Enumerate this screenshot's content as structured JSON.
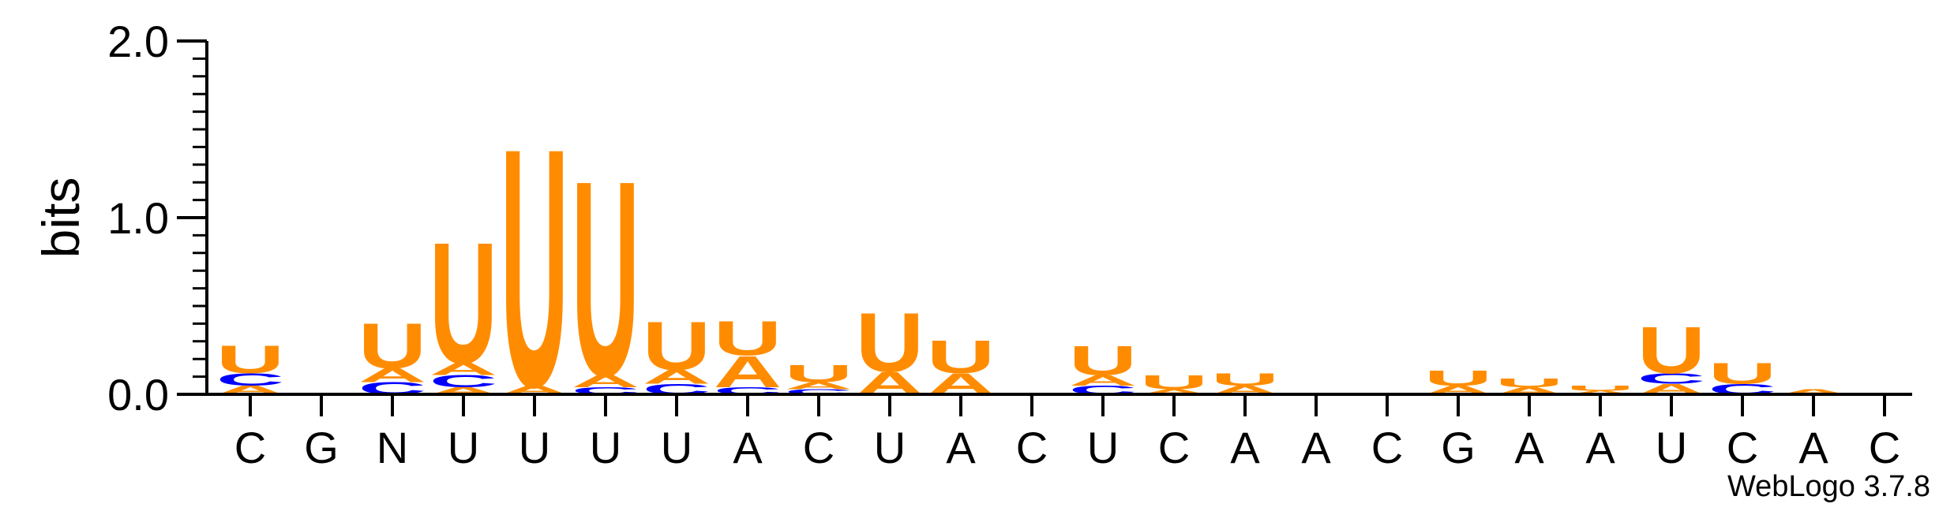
{
  "chart_data": {
    "type": "sequence-logo",
    "ylabel": "bits",
    "ylim": [
      0,
      2.0
    ],
    "yticks": [
      "0.0",
      "1.0",
      "2.0"
    ],
    "positions": [
      "C",
      "G",
      "N",
      "U",
      "U",
      "U",
      "U",
      "A",
      "C",
      "U",
      "A",
      "C",
      "U",
      "C",
      "A",
      "A",
      "C",
      "G",
      "A",
      "A",
      "U",
      "C",
      "A",
      "C"
    ],
    "colors": {
      "U": "#ff8c00",
      "C": "#0000ff",
      "A": "#ff8c00",
      "G": "#ff8c00"
    },
    "stacks": [
      [
        {
          "l": "A",
          "h": 0.05
        },
        {
          "l": "C",
          "h": 0.07
        },
        {
          "l": "U",
          "h": 0.16
        }
      ],
      [],
      [
        {
          "l": "C",
          "h": 0.07
        },
        {
          "l": "A",
          "h": 0.08
        },
        {
          "l": "U",
          "h": 0.26
        }
      ],
      [
        {
          "l": "A",
          "h": 0.04
        },
        {
          "l": "C",
          "h": 0.07
        },
        {
          "l": "A",
          "h": 0.07
        },
        {
          "l": "U",
          "h": 0.7
        }
      ],
      [
        {
          "l": "A",
          "h": 0.05
        },
        {
          "l": "U",
          "h": 1.38
        }
      ],
      [
        {
          "l": "C",
          "h": 0.04
        },
        {
          "l": "A",
          "h": 0.07
        },
        {
          "l": "U",
          "h": 1.13
        }
      ],
      [
        {
          "l": "C",
          "h": 0.06
        },
        {
          "l": "A",
          "h": 0.08
        },
        {
          "l": "U",
          "h": 0.28
        }
      ],
      [
        {
          "l": "C",
          "h": 0.04
        },
        {
          "l": "A",
          "h": 0.18
        },
        {
          "l": "U",
          "h": 0.2
        }
      ],
      [
        {
          "l": "C",
          "h": 0.03
        },
        {
          "l": "A",
          "h": 0.04
        },
        {
          "l": "U",
          "h": 0.1
        }
      ],
      [
        {
          "l": "A",
          "h": 0.13
        },
        {
          "l": "U",
          "h": 0.34
        }
      ],
      [
        {
          "l": "A",
          "h": 0.12
        },
        {
          "l": "U",
          "h": 0.19
        }
      ],
      [],
      [
        {
          "l": "C",
          "h": 0.05
        },
        {
          "l": "A",
          "h": 0.06
        },
        {
          "l": "U",
          "h": 0.17
        }
      ],
      [
        {
          "l": "A",
          "h": 0.03
        },
        {
          "l": "U",
          "h": 0.08
        }
      ],
      [
        {
          "l": "A",
          "h": 0.05
        },
        {
          "l": "U",
          "h": 0.07
        }
      ],
      [],
      [],
      [
        {
          "l": "A",
          "h": 0.05
        },
        {
          "l": "U",
          "h": 0.09
        }
      ],
      [
        {
          "l": "A",
          "h": 0.04
        },
        {
          "l": "U",
          "h": 0.05
        }
      ],
      [
        {
          "l": "A",
          "h": 0.02
        },
        {
          "l": "U",
          "h": 0.03
        }
      ],
      [
        {
          "l": "A",
          "h": 0.06
        },
        {
          "l": "C",
          "h": 0.06
        },
        {
          "l": "U",
          "h": 0.27
        }
      ],
      [
        {
          "l": "C",
          "h": 0.06
        },
        {
          "l": "U",
          "h": 0.12
        }
      ],
      [
        {
          "l": "A",
          "h": 0.03
        }
      ],
      []
    ]
  },
  "footer": "WebLogo 3.7.8"
}
